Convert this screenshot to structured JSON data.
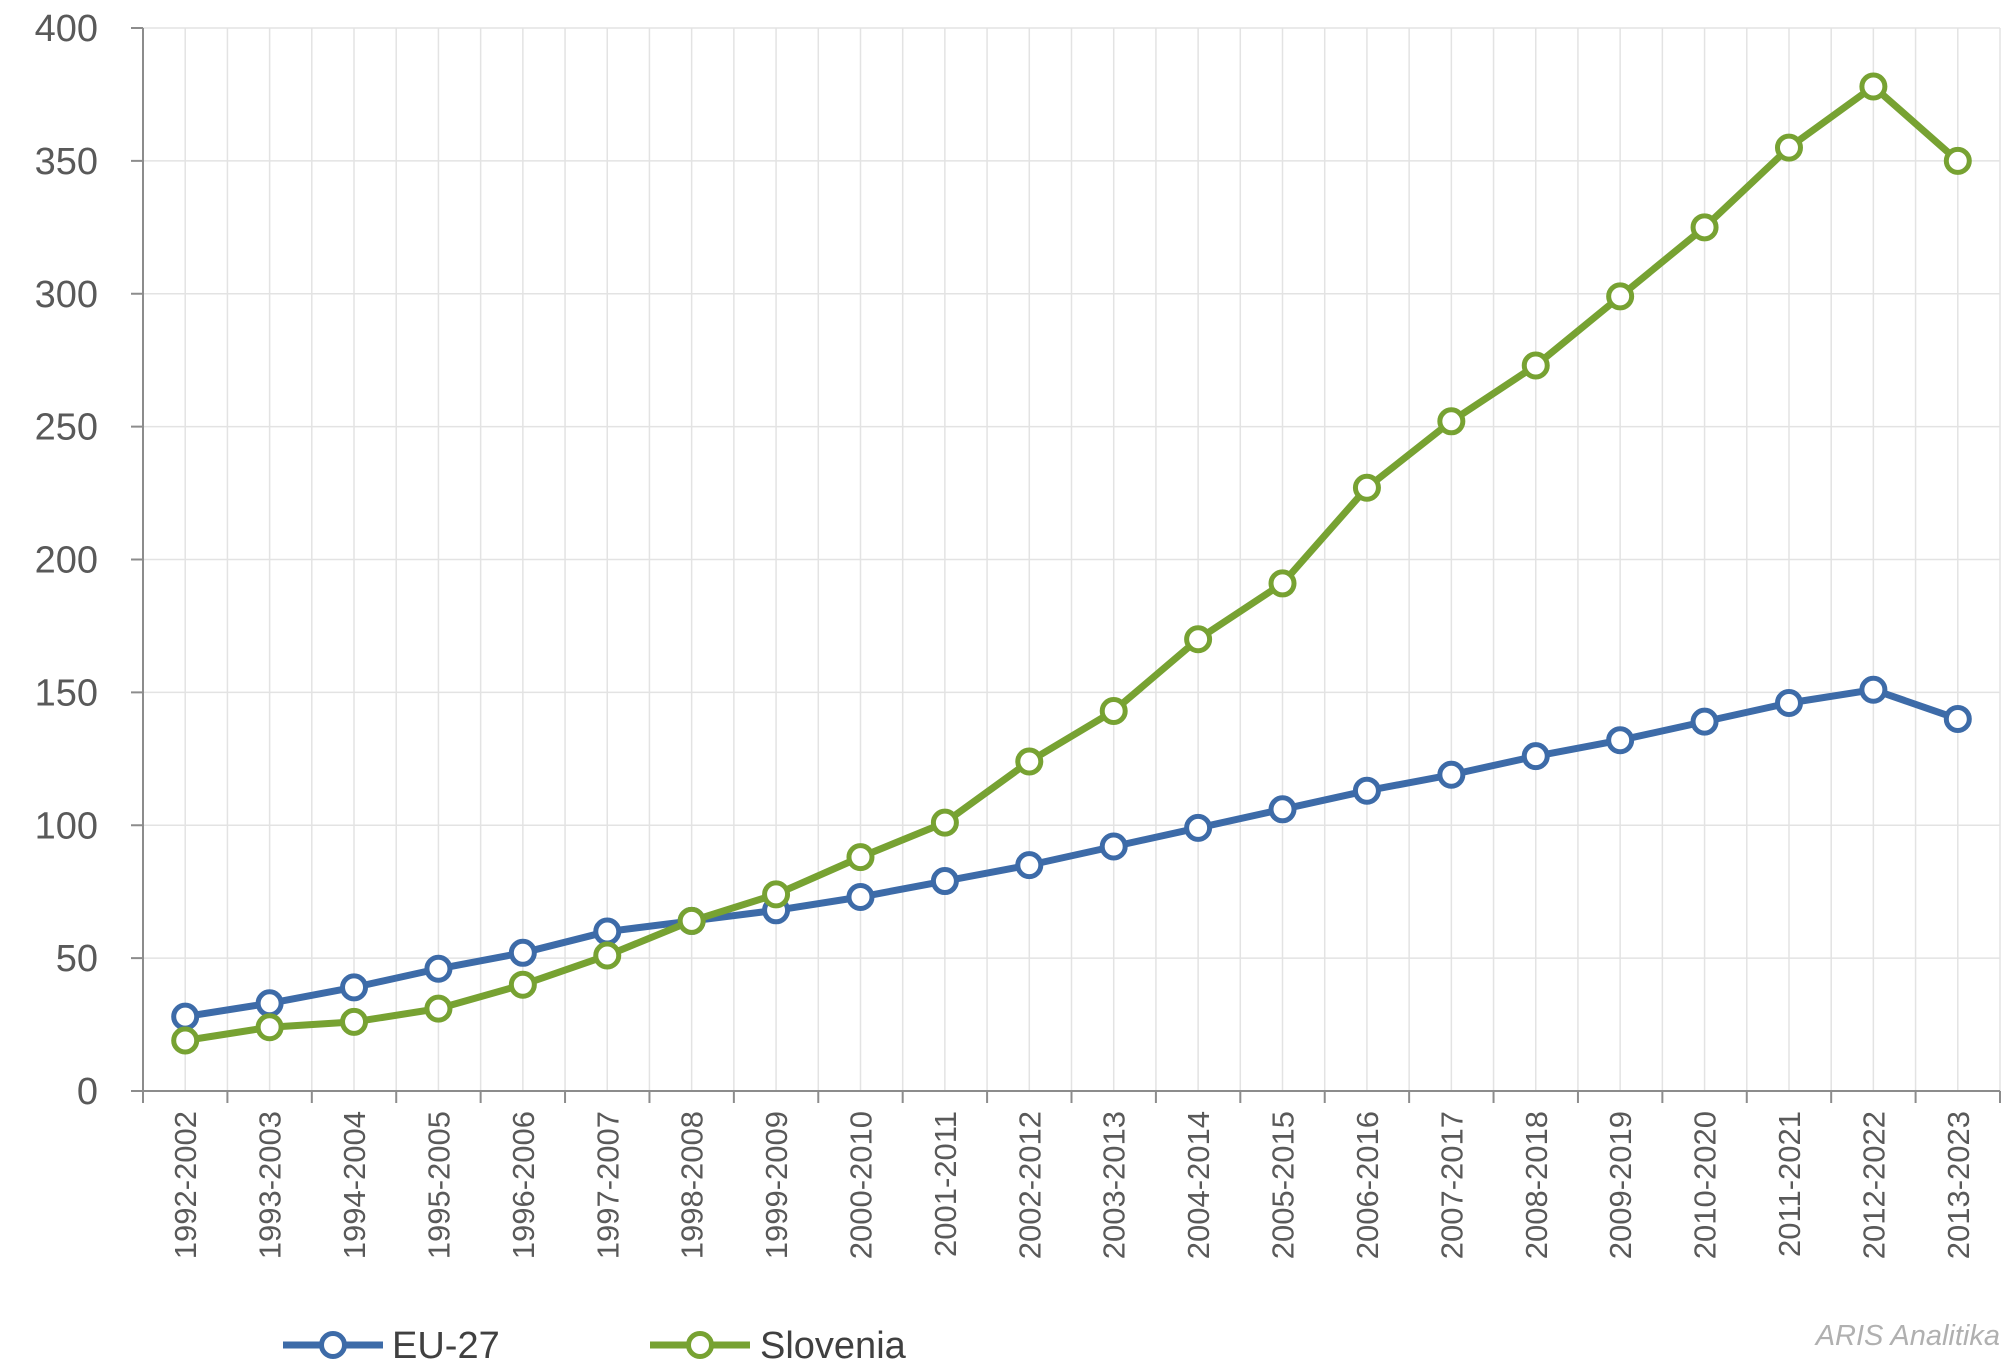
{
  "chart_data": {
    "type": "line",
    "categories": [
      "1992-2002",
      "1993-2003",
      "1994-2004",
      "1995-2005",
      "1996-2006",
      "1997-2007",
      "1998-2008",
      "1999-2009",
      "2000-2010",
      "2001-2011",
      "2002-2012",
      "2003-2013",
      "2004-2014",
      "2005-2015",
      "2006-2016",
      "2007-2017",
      "2008-2018",
      "2009-2019",
      "2010-2020",
      "2011-2021",
      "2012-2022",
      "2013-2023"
    ],
    "series": [
      {
        "name": "EU-27",
        "color": "#3D6BA8",
        "values": [
          28,
          33,
          39,
          46,
          52,
          60,
          64,
          68,
          73,
          79,
          85,
          92,
          99,
          106,
          113,
          119,
          126,
          132,
          139,
          146,
          151,
          140
        ]
      },
      {
        "name": "Slovenia",
        "color": "#77A232",
        "values": [
          19,
          24,
          26,
          31,
          40,
          51,
          64,
          74,
          88,
          101,
          124,
          143,
          170,
          191,
          227,
          252,
          273,
          299,
          325,
          355,
          378,
          350
        ]
      }
    ],
    "yticks": [
      "0",
      "50",
      "100",
      "150",
      "200",
      "250",
      "300",
      "350",
      "400"
    ],
    "ylim": [
      0,
      400
    ],
    "grid": true,
    "legend": "bottom-left",
    "source": "ARIS Analitika"
  }
}
